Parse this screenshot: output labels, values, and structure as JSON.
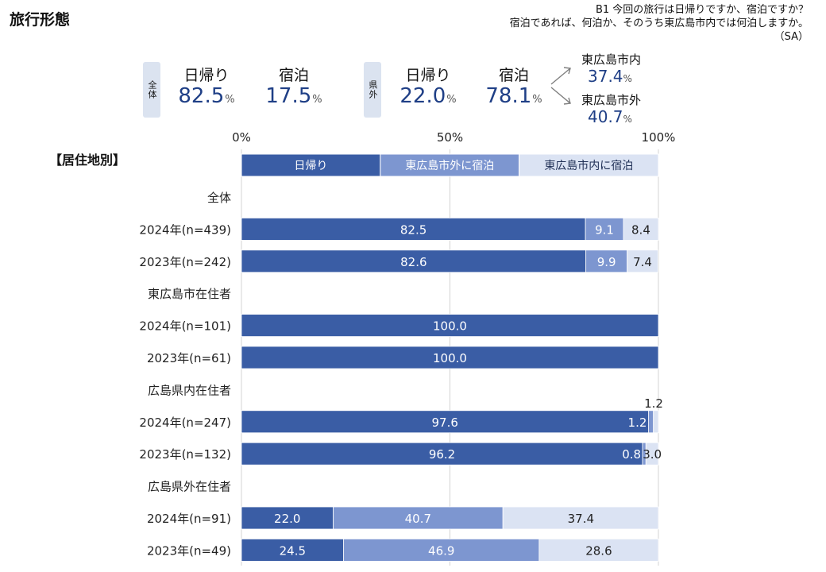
{
  "header": {
    "title": "旅行形態",
    "question_line1": "B1 今回の旅行は日帰りですか、宿泊ですか？",
    "question_line2": "宿泊であれば、何泊か、そのうち東広島市内では何泊しますか。",
    "question_line3": "（SA）"
  },
  "summary": {
    "overall_tag": "全体",
    "overall_daytrip_label": "日帰り",
    "overall_daytrip_value": "82.5",
    "overall_stay_label": "宿泊",
    "overall_stay_value": "17.5",
    "outpref_tag": "県外",
    "outpref_daytrip_label": "日帰り",
    "outpref_daytrip_value": "22.0",
    "outpref_stay_label": "宿泊",
    "outpref_stay_value": "78.1",
    "in_city_label": "東広島市内",
    "in_city_value": "37.4",
    "out_city_label": "東広島市外",
    "out_city_value": "40.7",
    "pct": "%"
  },
  "section_label": "【居住地別】",
  "colors": {
    "daytrip": "#3a5da5",
    "stay_outside": "#7d96d0",
    "stay_inside": "#dbe3f3",
    "grid": "#d4d4d4",
    "arrow": "#7f7f7f"
  },
  "chart_data": {
    "type": "bar",
    "orientation": "horizontal",
    "stacked": true,
    "xlim": [
      0,
      100
    ],
    "x_ticks": [
      "0%",
      "50%",
      "100%"
    ],
    "legend": [
      "日帰り",
      "東広島市外に宿泊",
      "東広島市内に宿泊"
    ],
    "rows": [
      {
        "label": "全体",
        "group_header": true
      },
      {
        "label": "2024年(n=439)",
        "values": [
          82.5,
          9.1,
          8.4
        ]
      },
      {
        "label": "2023年(n=242)",
        "values": [
          82.6,
          9.9,
          7.4
        ]
      },
      {
        "label": "東広島市在住者",
        "group_header": true
      },
      {
        "label": "2024年(n=101)",
        "values": [
          100.0,
          0,
          0
        ]
      },
      {
        "label": "2023年(n=61)",
        "values": [
          100.0,
          0,
          0
        ]
      },
      {
        "label": "広島県内在住者",
        "group_header": true
      },
      {
        "label": "2024年(n=247)",
        "values": [
          97.6,
          1.2,
          1.2
        ]
      },
      {
        "label": "2023年(n=132)",
        "values": [
          96.2,
          0.8,
          3.0
        ]
      },
      {
        "label": "広島県外在住者",
        "group_header": true
      },
      {
        "label": "2024年(n=91)",
        "values": [
          22.0,
          40.7,
          37.4
        ]
      },
      {
        "label": "2023年(n=49)",
        "values": [
          24.5,
          46.9,
          28.6
        ]
      }
    ]
  }
}
